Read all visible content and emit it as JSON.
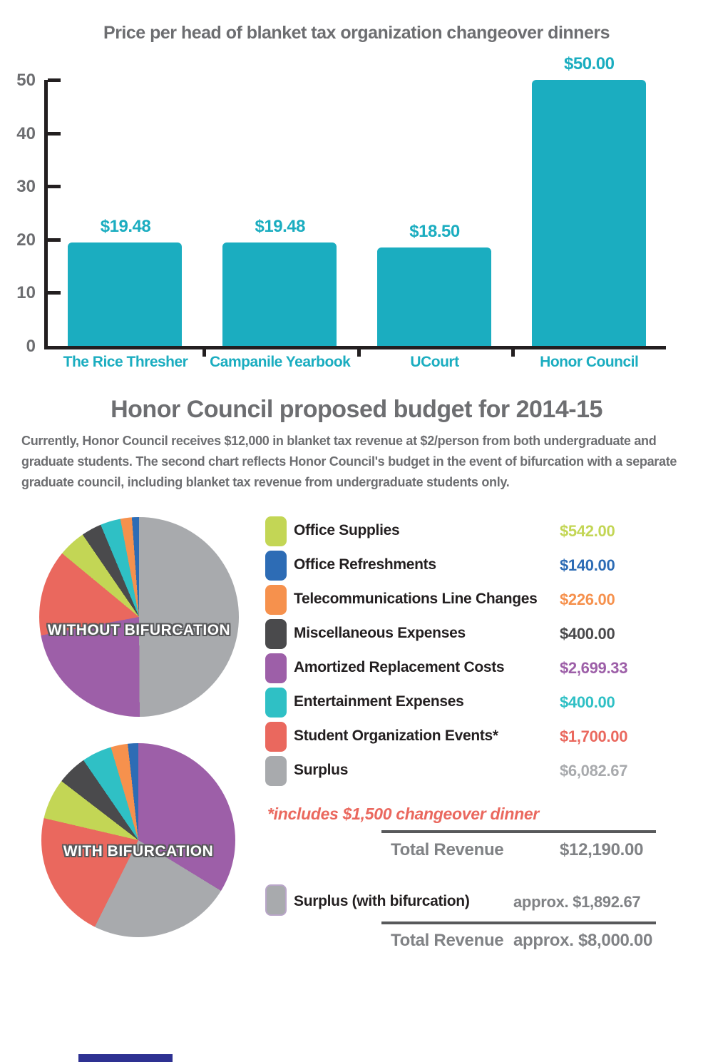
{
  "chart_data": [
    {
      "type": "bar",
      "title": "Price per head of blanket tax organization changeover dinners",
      "categories": [
        "The Rice Thresher",
        "Campanile Yearbook",
        "UCourt",
        "Honor Council"
      ],
      "values": [
        19.48,
        19.48,
        18.5,
        50.0
      ],
      "value_labels": [
        "$19.48",
        "$19.48",
        "$18.50",
        "$50.00"
      ],
      "xlabel": "",
      "ylabel": "",
      "ylim": [
        0,
        50
      ],
      "yticks": [
        50,
        40,
        30,
        20,
        10,
        0
      ],
      "grid": false,
      "legend_position": "none",
      "bar_color": "#1badc0"
    },
    {
      "type": "pie",
      "label": "WITHOUT BIFURCATION",
      "total": 12190.0,
      "slices": [
        {
          "name": "Surplus",
          "value": 6082.67,
          "color": "#a8aaad"
        },
        {
          "name": "Amortized Replacement Costs",
          "value": 2699.33,
          "color": "#9d5fa8"
        },
        {
          "name": "Student Organization Events",
          "value": 1700.0,
          "color": "#ea685e"
        },
        {
          "name": "Office Supplies",
          "value": 542.0,
          "color": "#c3d655"
        },
        {
          "name": "Miscellaneous Expenses",
          "value": 400.0,
          "color": "#4a4a4c"
        },
        {
          "name": "Entertainment Expenses",
          "value": 400.0,
          "color": "#2fc0c5"
        },
        {
          "name": "Telecommunications Line Changes",
          "value": 226.0,
          "color": "#f6914d"
        },
        {
          "name": "Office Refreshments",
          "value": 140.0,
          "color": "#2d6cb5"
        }
      ]
    },
    {
      "type": "pie",
      "label": "WITH BIFURCATION",
      "total": 8000.0,
      "slices": [
        {
          "name": "Amortized Replacement Costs",
          "value": 2699.33,
          "color": "#9d5fa8"
        },
        {
          "name": "Surplus",
          "value": 1892.67,
          "color": "#a8aaad"
        },
        {
          "name": "Student Organization Events",
          "value": 1700.0,
          "color": "#ea685e"
        },
        {
          "name": "Office Supplies",
          "value": 542.0,
          "color": "#c3d655"
        },
        {
          "name": "Miscellaneous Expenses",
          "value": 400.0,
          "color": "#4a4a4c"
        },
        {
          "name": "Entertainment Expenses",
          "value": 400.0,
          "color": "#2fc0c5"
        },
        {
          "name": "Telecommunications Line Changes",
          "value": 226.0,
          "color": "#f6914d"
        },
        {
          "name": "Office Refreshments",
          "value": 140.0,
          "color": "#2d6cb5"
        }
      ]
    }
  ],
  "budget_section": {
    "title": "Honor Council proposed budget for 2014-15",
    "description": "Currently, Honor Council receives $12,000 in blanket tax revenue at $2/person from both undergraduate and graduate students. The second chart reflects Honor Council's budget in the event of bifurcation with a separate graduate council, including blanket tax revenue from undergraduate students only."
  },
  "pie_labels": {
    "without": "WITHOUT BIFURCATION",
    "with": "WITH BIFURCATION"
  },
  "legend": {
    "items": [
      {
        "label": "Office Supplies",
        "value": "$542.00",
        "color": "#c3d655"
      },
      {
        "label": "Office Refreshments",
        "value": "$140.00",
        "color": "#2d6cb5"
      },
      {
        "label": "Telecommunications Line Changes",
        "value": "$226.00",
        "color": "#f6914d"
      },
      {
        "label": "Miscellaneous Expenses",
        "value": "$400.00",
        "color": "#4a4a4c"
      },
      {
        "label": "Amortized Replacement Costs",
        "value": "$2,699.33",
        "color": "#9d5fa8"
      },
      {
        "label": "Entertainment Expenses",
        "value": "$400.00",
        "color": "#2fc0c5"
      },
      {
        "label": "Student Organization Events*",
        "value": "$1,700.00",
        "color": "#ea685e"
      },
      {
        "label": "Surplus",
        "value": "$6,082.67",
        "color": "#a8aaad"
      }
    ],
    "footnote": "*includes $1,500 changeover dinner",
    "total_label": "Total Revenue",
    "total_value": "$12,190.00"
  },
  "bifurcation": {
    "surplus_label": "Surplus (with bifurcation)",
    "surplus_value": "approx. $1,892.67",
    "surplus_color": "#a8aaad",
    "total_label": "Total Revenue",
    "total_value": "approx. $8,000.00"
  },
  "colors": {
    "bar_teal": "#1badc0",
    "heading_gray": "#6d6e71",
    "text_black": "#231f20",
    "muted_gray": "#808285",
    "rule_gray": "#58595b",
    "footnote_red": "#ea685e",
    "bottom_strip_blue": "#2e3192"
  }
}
